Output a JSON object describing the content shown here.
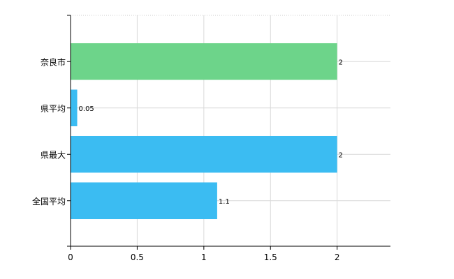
{
  "chart_data": {
    "type": "bar",
    "orientation": "horizontal",
    "categories": [
      "奈良市",
      "県平均",
      "県最大",
      "全国平均"
    ],
    "values": [
      2,
      0.05,
      2,
      1.1
    ],
    "value_labels": [
      "2",
      "0.05",
      "2",
      "1.1"
    ],
    "bar_colors": [
      "#6dd48a",
      "#3bbcf2",
      "#3bbcf2",
      "#3bbcf2"
    ],
    "xlim": [
      0,
      2.4
    ],
    "xticks": [
      0,
      0.5,
      1,
      1.5,
      2
    ],
    "xtick_labels": [
      "0",
      "0.5",
      "1",
      "1.5",
      "2"
    ],
    "grid": true,
    "legend": "none",
    "title": "",
    "xlabel": "",
    "ylabel": ""
  }
}
